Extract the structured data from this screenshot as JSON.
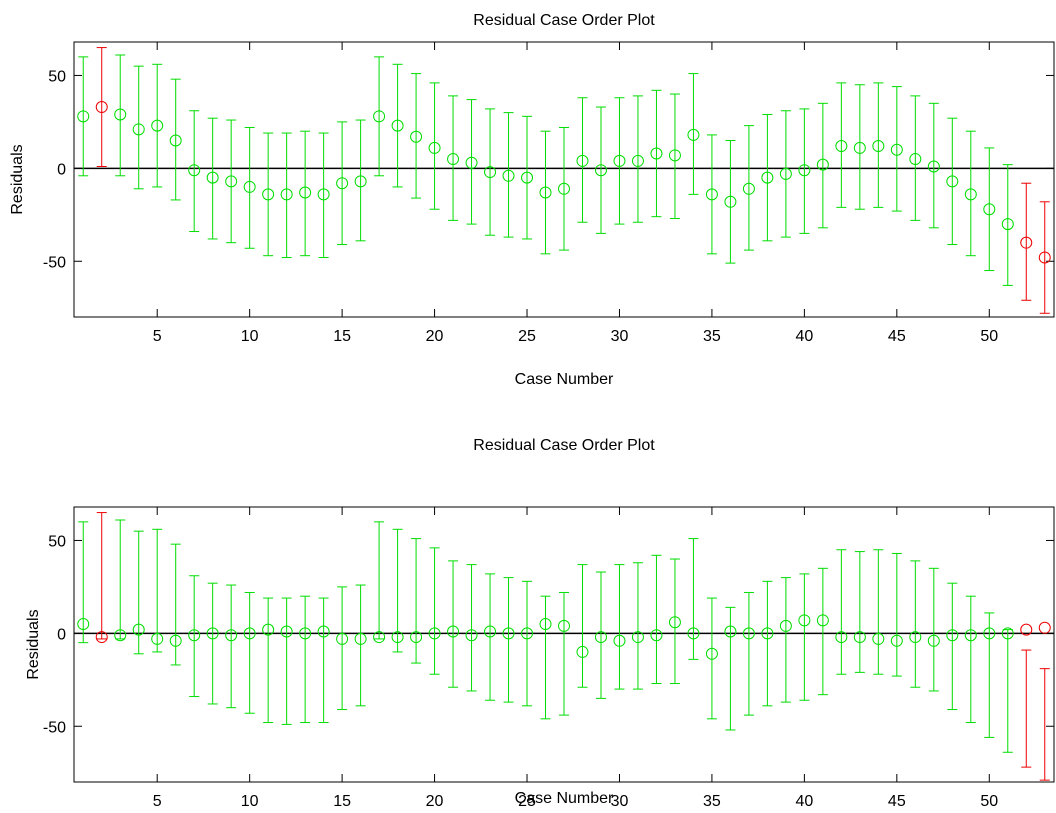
{
  "chart_data": [
    {
      "type": "errorbar",
      "title": "Residual Case Order Plot",
      "xlabel": "Case Number",
      "ylabel": "Residuals",
      "xlim": [
        0.5,
        53.5
      ],
      "ylim": [
        -80,
        68
      ],
      "xticks": [
        5,
        10,
        15,
        20,
        25,
        30,
        35,
        40,
        45,
        50
      ],
      "yticks": [
        -50,
        0,
        50
      ],
      "colors": {
        "normal": "#00dd00",
        "outlier": "#ee0000",
        "zero_line": "#000000"
      },
      "points": [
        {
          "x": 1,
          "y": 28,
          "lo": -4,
          "hi": 60,
          "outlier": false
        },
        {
          "x": 2,
          "y": 33,
          "lo": 1,
          "hi": 65,
          "outlier": true
        },
        {
          "x": 3,
          "y": 29,
          "lo": -4,
          "hi": 61,
          "outlier": false
        },
        {
          "x": 4,
          "y": 21,
          "lo": -11,
          "hi": 55,
          "outlier": false
        },
        {
          "x": 5,
          "y": 23,
          "lo": -10,
          "hi": 56,
          "outlier": false
        },
        {
          "x": 6,
          "y": 15,
          "lo": -17,
          "hi": 48,
          "outlier": false
        },
        {
          "x": 7,
          "y": -1,
          "lo": -34,
          "hi": 31,
          "outlier": false
        },
        {
          "x": 8,
          "y": -5,
          "lo": -38,
          "hi": 27,
          "outlier": false
        },
        {
          "x": 9,
          "y": -7,
          "lo": -40,
          "hi": 26,
          "outlier": false
        },
        {
          "x": 10,
          "y": -10,
          "lo": -43,
          "hi": 22,
          "outlier": false
        },
        {
          "x": 11,
          "y": -14,
          "lo": -47,
          "hi": 19,
          "outlier": false
        },
        {
          "x": 12,
          "y": -14,
          "lo": -48,
          "hi": 19,
          "outlier": false
        },
        {
          "x": 13,
          "y": -13,
          "lo": -47,
          "hi": 20,
          "outlier": false
        },
        {
          "x": 14,
          "y": -14,
          "lo": -48,
          "hi": 19,
          "outlier": false
        },
        {
          "x": 15,
          "y": -8,
          "lo": -41,
          "hi": 25,
          "outlier": false
        },
        {
          "x": 16,
          "y": -7,
          "lo": -39,
          "hi": 26,
          "outlier": false
        },
        {
          "x": 17,
          "y": 28,
          "lo": -4,
          "hi": 60,
          "outlier": false
        },
        {
          "x": 18,
          "y": 23,
          "lo": -10,
          "hi": 56,
          "outlier": false
        },
        {
          "x": 19,
          "y": 17,
          "lo": -16,
          "hi": 51,
          "outlier": false
        },
        {
          "x": 20,
          "y": 11,
          "lo": -22,
          "hi": 46,
          "outlier": false
        },
        {
          "x": 21,
          "y": 5,
          "lo": -28,
          "hi": 39,
          "outlier": false
        },
        {
          "x": 22,
          "y": 3,
          "lo": -30,
          "hi": 37,
          "outlier": false
        },
        {
          "x": 23,
          "y": -2,
          "lo": -36,
          "hi": 32,
          "outlier": false
        },
        {
          "x": 24,
          "y": -4,
          "lo": -37,
          "hi": 30,
          "outlier": false
        },
        {
          "x": 25,
          "y": -5,
          "lo": -38,
          "hi": 28,
          "outlier": false
        },
        {
          "x": 26,
          "y": -13,
          "lo": -46,
          "hi": 20,
          "outlier": false
        },
        {
          "x": 27,
          "y": -11,
          "lo": -44,
          "hi": 22,
          "outlier": false
        },
        {
          "x": 28,
          "y": 4,
          "lo": -29,
          "hi": 38,
          "outlier": false
        },
        {
          "x": 29,
          "y": -1,
          "lo": -35,
          "hi": 33,
          "outlier": false
        },
        {
          "x": 30,
          "y": 4,
          "lo": -30,
          "hi": 38,
          "outlier": false
        },
        {
          "x": 31,
          "y": 4,
          "lo": -29,
          "hi": 39,
          "outlier": false
        },
        {
          "x": 32,
          "y": 8,
          "lo": -26,
          "hi": 42,
          "outlier": false
        },
        {
          "x": 33,
          "y": 7,
          "lo": -27,
          "hi": 40,
          "outlier": false
        },
        {
          "x": 34,
          "y": 18,
          "lo": -14,
          "hi": 51,
          "outlier": false
        },
        {
          "x": 35,
          "y": -14,
          "lo": -46,
          "hi": 18,
          "outlier": false
        },
        {
          "x": 36,
          "y": -18,
          "lo": -51,
          "hi": 15,
          "outlier": false
        },
        {
          "x": 37,
          "y": -11,
          "lo": -44,
          "hi": 23,
          "outlier": false
        },
        {
          "x": 38,
          "y": -5,
          "lo": -39,
          "hi": 29,
          "outlier": false
        },
        {
          "x": 39,
          "y": -3,
          "lo": -37,
          "hi": 31,
          "outlier": false
        },
        {
          "x": 40,
          "y": -1,
          "lo": -35,
          "hi": 32,
          "outlier": false
        },
        {
          "x": 41,
          "y": 2,
          "lo": -32,
          "hi": 35,
          "outlier": false
        },
        {
          "x": 42,
          "y": 12,
          "lo": -21,
          "hi": 46,
          "outlier": false
        },
        {
          "x": 43,
          "y": 11,
          "lo": -22,
          "hi": 45,
          "outlier": false
        },
        {
          "x": 44,
          "y": 12,
          "lo": -21,
          "hi": 46,
          "outlier": false
        },
        {
          "x": 45,
          "y": 10,
          "lo": -23,
          "hi": 44,
          "outlier": false
        },
        {
          "x": 46,
          "y": 5,
          "lo": -28,
          "hi": 39,
          "outlier": false
        },
        {
          "x": 47,
          "y": 1,
          "lo": -32,
          "hi": 35,
          "outlier": false
        },
        {
          "x": 48,
          "y": -7,
          "lo": -41,
          "hi": 27,
          "outlier": false
        },
        {
          "x": 49,
          "y": -14,
          "lo": -47,
          "hi": 20,
          "outlier": false
        },
        {
          "x": 50,
          "y": -22,
          "lo": -55,
          "hi": 11,
          "outlier": false
        },
        {
          "x": 51,
          "y": -30,
          "lo": -63,
          "hi": 2,
          "outlier": false
        },
        {
          "x": 52,
          "y": -40,
          "lo": -71,
          "hi": -8,
          "outlier": true
        },
        {
          "x": 53,
          "y": -48,
          "lo": -78,
          "hi": -18,
          "outlier": true
        }
      ]
    },
    {
      "type": "errorbar",
      "title": "Residual Case Order Plot",
      "xlabel": "Case Number",
      "ylabel": "Residuals",
      "xlim": [
        0.5,
        53.5
      ],
      "ylim": [
        -80,
        68
      ],
      "xticks": [
        5,
        10,
        15,
        20,
        25,
        30,
        35,
        40,
        45,
        50
      ],
      "yticks": [
        -50,
        0,
        50
      ],
      "colors": {
        "normal": "#00dd00",
        "outlier": "#ee0000",
        "zero_line": "#000000"
      },
      "points": [
        {
          "x": 1,
          "y": 5,
          "lo": -5,
          "hi": 60,
          "outlier": false
        },
        {
          "x": 2,
          "y": -2,
          "lo": -3,
          "hi": 65,
          "outlier": true
        },
        {
          "x": 3,
          "y": -1,
          "lo": -3,
          "hi": 61,
          "outlier": false
        },
        {
          "x": 4,
          "y": 2,
          "lo": -11,
          "hi": 55,
          "outlier": false
        },
        {
          "x": 5,
          "y": -3,
          "lo": -10,
          "hi": 56,
          "outlier": false
        },
        {
          "x": 6,
          "y": -4,
          "lo": -17,
          "hi": 48,
          "outlier": false
        },
        {
          "x": 7,
          "y": -1,
          "lo": -34,
          "hi": 31,
          "outlier": false
        },
        {
          "x": 8,
          "y": 0,
          "lo": -38,
          "hi": 27,
          "outlier": false
        },
        {
          "x": 9,
          "y": -1,
          "lo": -40,
          "hi": 26,
          "outlier": false
        },
        {
          "x": 10,
          "y": 0,
          "lo": -43,
          "hi": 22,
          "outlier": false
        },
        {
          "x": 11,
          "y": 2,
          "lo": -48,
          "hi": 19,
          "outlier": false
        },
        {
          "x": 12,
          "y": 1,
          "lo": -49,
          "hi": 19,
          "outlier": false
        },
        {
          "x": 13,
          "y": 0,
          "lo": -48,
          "hi": 20,
          "outlier": false
        },
        {
          "x": 14,
          "y": 1,
          "lo": -48,
          "hi": 19,
          "outlier": false
        },
        {
          "x": 15,
          "y": -3,
          "lo": -41,
          "hi": 25,
          "outlier": false
        },
        {
          "x": 16,
          "y": -3,
          "lo": -39,
          "hi": 26,
          "outlier": false
        },
        {
          "x": 17,
          "y": -2,
          "lo": -3,
          "hi": 60,
          "outlier": false
        },
        {
          "x": 18,
          "y": -2,
          "lo": -10,
          "hi": 56,
          "outlier": false
        },
        {
          "x": 19,
          "y": -2,
          "lo": -16,
          "hi": 51,
          "outlier": false
        },
        {
          "x": 20,
          "y": 0,
          "lo": -22,
          "hi": 46,
          "outlier": false
        },
        {
          "x": 21,
          "y": 1,
          "lo": -29,
          "hi": 39,
          "outlier": false
        },
        {
          "x": 22,
          "y": -1,
          "lo": -31,
          "hi": 37,
          "outlier": false
        },
        {
          "x": 23,
          "y": 1,
          "lo": -36,
          "hi": 32,
          "outlier": false
        },
        {
          "x": 24,
          "y": 0,
          "lo": -37,
          "hi": 30,
          "outlier": false
        },
        {
          "x": 25,
          "y": 0,
          "lo": -39,
          "hi": 28,
          "outlier": false
        },
        {
          "x": 26,
          "y": 5,
          "lo": -46,
          "hi": 20,
          "outlier": false
        },
        {
          "x": 27,
          "y": 4,
          "lo": -44,
          "hi": 22,
          "outlier": false
        },
        {
          "x": 28,
          "y": -10,
          "lo": -29,
          "hi": 37,
          "outlier": false
        },
        {
          "x": 29,
          "y": -2,
          "lo": -35,
          "hi": 33,
          "outlier": false
        },
        {
          "x": 30,
          "y": -4,
          "lo": -30,
          "hi": 37,
          "outlier": false
        },
        {
          "x": 31,
          "y": -2,
          "lo": -30,
          "hi": 38,
          "outlier": false
        },
        {
          "x": 32,
          "y": -1,
          "lo": -27,
          "hi": 42,
          "outlier": false
        },
        {
          "x": 33,
          "y": 6,
          "lo": -27,
          "hi": 40,
          "outlier": false
        },
        {
          "x": 34,
          "y": 0,
          "lo": -14,
          "hi": 51,
          "outlier": false
        },
        {
          "x": 35,
          "y": -11,
          "lo": -46,
          "hi": 19,
          "outlier": false
        },
        {
          "x": 36,
          "y": 1,
          "lo": -52,
          "hi": 14,
          "outlier": false
        },
        {
          "x": 37,
          "y": 0,
          "lo": -44,
          "hi": 22,
          "outlier": false
        },
        {
          "x": 38,
          "y": 0,
          "lo": -39,
          "hi": 28,
          "outlier": false
        },
        {
          "x": 39,
          "y": 4,
          "lo": -37,
          "hi": 30,
          "outlier": false
        },
        {
          "x": 40,
          "y": 7,
          "lo": -36,
          "hi": 32,
          "outlier": false
        },
        {
          "x": 41,
          "y": 7,
          "lo": -33,
          "hi": 35,
          "outlier": false
        },
        {
          "x": 42,
          "y": -2,
          "lo": -22,
          "hi": 45,
          "outlier": false
        },
        {
          "x": 43,
          "y": -2,
          "lo": -21,
          "hi": 44,
          "outlier": false
        },
        {
          "x": 44,
          "y": -3,
          "lo": -22,
          "hi": 45,
          "outlier": false
        },
        {
          "x": 45,
          "y": -4,
          "lo": -23,
          "hi": 43,
          "outlier": false
        },
        {
          "x": 46,
          "y": -2,
          "lo": -29,
          "hi": 39,
          "outlier": false
        },
        {
          "x": 47,
          "y": -4,
          "lo": -31,
          "hi": 35,
          "outlier": false
        },
        {
          "x": 48,
          "y": -1,
          "lo": -41,
          "hi": 27,
          "outlier": false
        },
        {
          "x": 49,
          "y": -1,
          "lo": -48,
          "hi": 20,
          "outlier": false
        },
        {
          "x": 50,
          "y": 0,
          "lo": -56,
          "hi": 11,
          "outlier": false
        },
        {
          "x": 51,
          "y": 0,
          "lo": -64,
          "hi": 2,
          "outlier": false
        },
        {
          "x": 52,
          "y": 2,
          "lo": -72,
          "hi": -9,
          "outlier": true
        },
        {
          "x": 53,
          "y": 3,
          "lo": -79,
          "hi": -19,
          "outlier": true
        }
      ]
    }
  ]
}
